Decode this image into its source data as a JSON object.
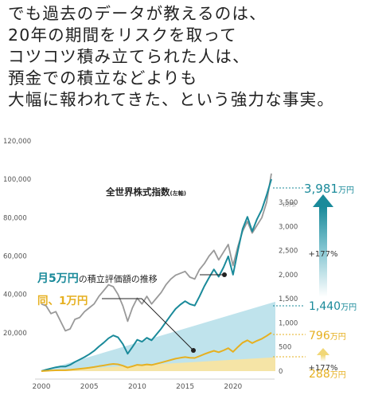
{
  "headline": [
    "でも過去のデータが教えるのは、",
    "20年の期間をリスクを取って",
    "コツコツ積み立てられた人は、",
    "預金での積立などよりも",
    "大幅に報われてきた、という強力な事実。"
  ],
  "chart_data": {
    "type": "line",
    "x_axis": {
      "ticks": [
        "2000",
        "2005",
        "2010",
        "2015",
        "2020"
      ],
      "range": [
        2000,
        2024
      ]
    },
    "y_left": {
      "ticks": [
        "120,000",
        "100,000",
        "80,000",
        "60,000",
        "40,000",
        "20,000"
      ],
      "range": [
        0,
        120000
      ]
    },
    "y_right": {
      "unit": "(万円)",
      "ticks": [
        "3,500",
        "3,000",
        "2,500",
        "2,000",
        "1,500",
        "1,000",
        "500",
        "0"
      ],
      "range": [
        0,
        3800
      ]
    },
    "series": [
      {
        "name": "全世界株式指数",
        "name_suffix": "(左軸)",
        "axis": "left",
        "color": "#999999",
        "x": [
          2000,
          2000.5,
          2001,
          2001.5,
          2002,
          2002.5,
          2003,
          2003.5,
          2004,
          2004.5,
          2005,
          2005.5,
          2006,
          2006.5,
          2007,
          2007.5,
          2008,
          2008.5,
          2009,
          2009.5,
          2010,
          2010.5,
          2011,
          2011.5,
          2012,
          2012.5,
          2013,
          2013.5,
          2014,
          2014.5,
          2015,
          2015.5,
          2016,
          2016.5,
          2017,
          2017.5,
          2018,
          2018.5,
          2019,
          2019.5,
          2020,
          2020.5,
          2021,
          2021.5,
          2022,
          2022.5,
          2023,
          2023.5,
          2024
        ],
        "y": [
          35000,
          34000,
          30000,
          31000,
          26000,
          21000,
          22000,
          27000,
          28000,
          31000,
          33000,
          35000,
          39000,
          42000,
          45000,
          44000,
          40000,
          34000,
          26000,
          33000,
          38000,
          35000,
          39000,
          35000,
          38000,
          41000,
          45000,
          48000,
          50000,
          51000,
          52000,
          49000,
          48000,
          53000,
          56000,
          60000,
          63000,
          58000,
          62000,
          66000,
          55000,
          65000,
          73000,
          78000,
          72000,
          76000,
          80000,
          88000,
          103000
        ]
      },
      {
        "name": "月5万円の積立評価額の推移",
        "axis": "right",
        "color": "#1a8a9a",
        "x": [
          2000,
          2000.5,
          2001,
          2001.5,
          2002,
          2002.5,
          2003,
          2003.5,
          2004,
          2004.5,
          2005,
          2005.5,
          2006,
          2006.5,
          2007,
          2007.5,
          2008,
          2008.5,
          2009,
          2009.5,
          2010,
          2010.5,
          2011,
          2011.5,
          2012,
          2012.5,
          2013,
          2013.5,
          2014,
          2014.5,
          2015,
          2015.5,
          2016,
          2016.5,
          2017,
          2017.5,
          2018,
          2018.5,
          2019,
          2019.5,
          2020,
          2020.5,
          2021,
          2021.5,
          2022,
          2022.5,
          2023,
          2023.5,
          2024
        ],
        "y": [
          0,
          30,
          55,
          80,
          95,
          95,
          130,
          190,
          240,
          290,
          350,
          420,
          510,
          590,
          680,
          740,
          700,
          560,
          360,
          500,
          650,
          610,
          690,
          640,
          760,
          880,
          1020,
          1160,
          1290,
          1380,
          1450,
          1390,
          1360,
          1550,
          1760,
          1940,
          2110,
          1960,
          2150,
          2380,
          2000,
          2500,
          2950,
          3200,
          2900,
          3150,
          3350,
          3650,
          3981
        ]
      },
      {
        "name": "同、1万円",
        "axis": "right",
        "color": "#e6b020",
        "x": [
          2000,
          2000.5,
          2001,
          2001.5,
          2002,
          2002.5,
          2003,
          2003.5,
          2004,
          2004.5,
          2005,
          2005.5,
          2006,
          2006.5,
          2007,
          2007.5,
          2008,
          2008.5,
          2009,
          2009.5,
          2010,
          2010.5,
          2011,
          2011.5,
          2012,
          2012.5,
          2013,
          2013.5,
          2014,
          2014.5,
          2015,
          2015.5,
          2016,
          2016.5,
          2017,
          2017.5,
          2018,
          2018.5,
          2019,
          2019.5,
          2020,
          2020.5,
          2021,
          2021.5,
          2022,
          2022.5,
          2023,
          2023.5,
          2024
        ],
        "y": [
          0,
          6,
          11,
          16,
          19,
          19,
          26,
          38,
          48,
          58,
          70,
          84,
          102,
          118,
          136,
          148,
          140,
          112,
          72,
          100,
          130,
          122,
          138,
          128,
          152,
          176,
          204,
          232,
          258,
          276,
          290,
          278,
          272,
          310,
          352,
          388,
          422,
          392,
          430,
          476,
          400,
          500,
          590,
          640,
          580,
          630,
          670,
          730,
          796
        ]
      }
    ],
    "principal_areas": [
      {
        "label": "1,440万円",
        "value": 1440,
        "color": "#bfe3ec"
      },
      {
        "label": "288万円",
        "value": 288,
        "color": "#f5e4a6"
      }
    ],
    "annotations": [
      {
        "big": "3,981",
        "unit": "万円",
        "color": "#1a8a9a"
      },
      {
        "big": "1,440",
        "unit": "万円",
        "color": "#1a8a9a"
      },
      {
        "big": "796",
        "unit": "万円",
        "color": "#e6b020"
      },
      {
        "big": "288",
        "unit": "万円",
        "color": "#e6b020"
      },
      {
        "text": "+177%"
      },
      {
        "text": "+177%"
      }
    ],
    "labels": {
      "index_name": "全世界株式指数",
      "index_suffix": "(左軸)",
      "monthly5_big": "月5万円",
      "monthly5_rest": "の積立評価額の推移",
      "monthly1": "同、1万円"
    }
  }
}
